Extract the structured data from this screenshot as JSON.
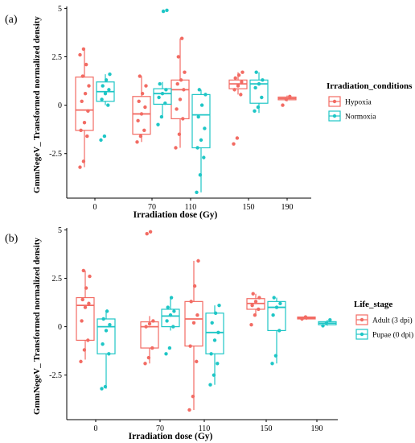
{
  "chart_data": [
    {
      "panel_label": "(a)",
      "type": "box",
      "xlabel": "Irradiation dose (Gy)",
      "ylabel": "GmmNegeV_ Transformed normalized density",
      "ylim": [
        -4.8,
        5.1
      ],
      "yticks": [
        "5",
        "2.5",
        "0",
        "-2.5"
      ],
      "ytick_values": [
        5,
        2.5,
        0,
        -2.5
      ],
      "categories": [
        "0",
        "70",
        "110",
        "150",
        "190"
      ],
      "legend_title": "Irradiation_conditions",
      "legend_position": "right",
      "series": [
        {
          "name": "Hypoxia",
          "color": "#f26b63",
          "boxes": [
            {
              "category": "0",
              "min": -3.2,
              "q1": -1.3,
              "median": -0.25,
              "q3": 1.45,
              "max": 2.9,
              "points": [
                -3.2,
                -2.9,
                -1.6,
                -1.3,
                -0.9,
                -0.3,
                0.2,
                0.6,
                1.0,
                1.5,
                2.1,
                2.6,
                2.9
              ]
            },
            {
              "category": "70",
              "min": -1.9,
              "q1": -1.5,
              "median": -0.45,
              "q3": 0.45,
              "max": 1.5,
              "points": [
                -1.9,
                -1.6,
                -1.3,
                -0.8,
                -0.45,
                -0.1,
                0.2,
                0.6,
                1.0,
                1.5
              ]
            },
            {
              "category": "110",
              "min": -2.2,
              "q1": -0.7,
              "median": 0.8,
              "q3": 1.3,
              "max": 3.45,
              "points": [
                -2.2,
                -1.5,
                -0.7,
                -0.2,
                0.3,
                0.8,
                1.1,
                1.3,
                1.7,
                2.5,
                3.45
              ]
            },
            {
              "category": "150",
              "min": 0.55,
              "q1": 0.85,
              "median": 1.1,
              "q3": 1.3,
              "max": 1.7,
              "points": [
                -2.0,
                -1.7,
                0.55,
                0.8,
                1.0,
                1.2,
                1.4,
                1.55,
                1.7
              ]
            },
            {
              "category": "190",
              "min": 0.2,
              "q1": 0.28,
              "median": 0.35,
              "q3": 0.42,
              "max": 0.5,
              "points": [
                0.0,
                0.3,
                0.45
              ]
            }
          ]
        },
        {
          "name": "Normoxia",
          "color": "#1ec6c6",
          "boxes": [
            {
              "category": "0",
              "min": 0.0,
              "q1": 0.2,
              "median": 0.7,
              "q3": 1.2,
              "max": 1.6,
              "points": [
                -1.8,
                -1.6,
                0.0,
                0.3,
                0.6,
                0.8,
                1.0,
                1.3,
                1.6
              ]
            },
            {
              "category": "70",
              "min": -0.6,
              "q1": 0.05,
              "median": 0.6,
              "q3": 0.85,
              "max": 1.2,
              "points": [
                -1.0,
                -0.6,
                0.1,
                0.4,
                0.6,
                0.8,
                1.1,
                4.85,
                4.9
              ]
            },
            {
              "category": "110",
              "min": -4.5,
              "q1": -2.2,
              "median": -0.5,
              "q3": 0.55,
              "max": 0.8,
              "points": [
                -4.5,
                -3.6,
                -2.7,
                -2.2,
                -1.8,
                -1.2,
                -0.6,
                0.0,
                0.55,
                0.8
              ]
            },
            {
              "category": "150",
              "min": -0.4,
              "q1": 0.1,
              "median": 1.1,
              "q3": 1.3,
              "max": 1.7,
              "points": [
                -0.3,
                -0.1,
                0.4,
                0.9,
                1.1,
                1.3,
                1.7
              ]
            }
          ]
        }
      ]
    },
    {
      "panel_label": "(b)",
      "type": "box",
      "xlabel": "Irradiation dose (Gy)",
      "ylabel": "GmmNegeV_ Transformed normalized density",
      "ylim": [
        -4.8,
        5.1
      ],
      "yticks": [
        "5",
        "2.5",
        "0",
        "-2.5"
      ],
      "ytick_values": [
        5,
        2.5,
        0,
        -2.5
      ],
      "categories": [
        "0",
        "70",
        "110",
        "150",
        "190"
      ],
      "legend_title": "Life_stage",
      "legend_position": "right",
      "series": [
        {
          "name": "Adult (3 dpi)",
          "color": "#f26b63",
          "boxes": [
            {
              "category": "0",
              "min": -1.7,
              "q1": -0.7,
              "median": 1.1,
              "q3": 1.5,
              "max": 2.9,
              "points": [
                -1.8,
                -1.2,
                -0.7,
                0.3,
                1.0,
                1.2,
                1.4,
                2.0,
                2.6,
                2.9
              ]
            },
            {
              "category": "70",
              "min": -1.9,
              "q1": -1.1,
              "median": 0.0,
              "q3": 0.25,
              "max": 0.55,
              "points": [
                -1.9,
                -1.6,
                -1.1,
                0.0,
                0.15,
                0.3,
                4.8,
                4.9
              ]
            },
            {
              "category": "110",
              "min": -4.3,
              "q1": -1.0,
              "median": 0.4,
              "q3": 1.3,
              "max": 3.4,
              "points": [
                -4.3,
                -3.6,
                -1.8,
                -1.0,
                0.2,
                0.6,
                1.3,
                2.1,
                3.4
              ]
            },
            {
              "category": "150",
              "min": 0.6,
              "q1": 0.9,
              "median": 1.2,
              "q3": 1.45,
              "max": 1.7,
              "points": [
                0.1,
                0.6,
                0.9,
                1.1,
                1.3,
                1.5,
                1.7
              ]
            },
            {
              "category": "190",
              "min": 0.35,
              "q1": 0.4,
              "median": 0.45,
              "q3": 0.5,
              "max": 0.55,
              "points": [
                0.4,
                0.5
              ]
            }
          ]
        },
        {
          "name": "Pupae (0 dpi)",
          "color": "#1ec6c6",
          "boxes": [
            {
              "category": "0",
              "min": -3.2,
              "q1": -1.4,
              "median": 0.0,
              "q3": 0.4,
              "max": 0.8,
              "points": [
                -3.2,
                -3.1,
                -1.4,
                -0.9,
                -0.2,
                0.1,
                0.4,
                0.8
              ]
            },
            {
              "category": "70",
              "min": -0.2,
              "q1": 0.0,
              "median": 0.55,
              "q3": 0.9,
              "max": 1.5,
              "points": [
                -1.4,
                -1.1,
                0.0,
                0.3,
                0.6,
                0.8,
                1.0,
                1.5
              ]
            },
            {
              "category": "110",
              "min": -3.0,
              "q1": -1.4,
              "median": -0.3,
              "q3": 0.7,
              "max": 1.1,
              "points": [
                -3.0,
                -2.5,
                -1.9,
                -1.4,
                -0.7,
                -0.3,
                0.2,
                0.7,
                1.1
              ]
            },
            {
              "category": "150",
              "min": -1.9,
              "q1": -0.2,
              "median": 1.0,
              "q3": 1.3,
              "max": 1.5,
              "points": [
                -1.9,
                -1.5,
                -0.2,
                0.6,
                1.0,
                1.2,
                1.5
              ]
            },
            {
              "category": "190",
              "min": 0.05,
              "q1": 0.1,
              "median": 0.18,
              "q3": 0.26,
              "max": 0.35,
              "points": [
                0.05,
                0.2,
                0.35
              ]
            }
          ]
        }
      ]
    }
  ]
}
